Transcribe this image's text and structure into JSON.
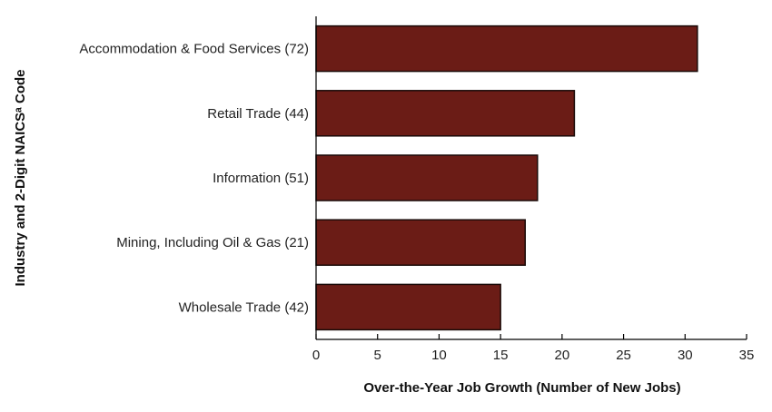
{
  "chart_data": {
    "type": "bar",
    "orientation": "horizontal",
    "title": "",
    "categories": [
      "Accommodation & Food Services (72)",
      "Retail Trade (44)",
      "Information (51)",
      "Mining, Including Oil & Gas (21)",
      "Wholesale Trade (42)"
    ],
    "values": [
      31,
      21,
      18,
      17,
      15
    ],
    "xlabel": "Over-the-Year Job Growth (Number of New Jobs)",
    "ylabel": "Industry and 2-Digit NAICSᵃ Code",
    "xlim": [
      0,
      35
    ],
    "xticks": [
      0,
      5,
      10,
      15,
      20,
      25,
      30,
      35
    ],
    "grid": false,
    "legend": "none",
    "bar_color": "#6b1c16",
    "bar_edge_color": "#1a0a08"
  }
}
